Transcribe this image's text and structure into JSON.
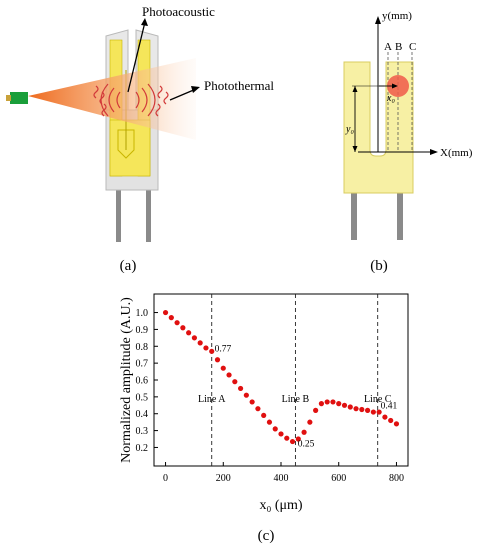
{
  "panel_a": {
    "caption": "(a)",
    "label_photoacoustic": "Photoacoustic",
    "label_photothermal": "Photothermal",
    "colors": {
      "laser": "#1a9e3a",
      "beam": "#f07a30",
      "fork_gold": "#f5e65a",
      "waves": "#d23a3a"
    }
  },
  "panel_b": {
    "caption": "(b)",
    "y_axis_label": "y(mm)",
    "x_axis_label": "X(mm)",
    "line_labels": [
      "A",
      "B",
      "C"
    ],
    "x0_label": "x₀",
    "y0_label": "y₀",
    "colors": {
      "fork": "#f7f0a4",
      "spot": "#f05a4a"
    }
  },
  "panel_c": {
    "caption": "(c)"
  },
  "chart_data": {
    "type": "scatter",
    "xlabel": "x₀ (μm)",
    "ylabel": "Normalized amplitude (A.U.)",
    "xlim": [
      -40,
      840
    ],
    "ylim": [
      0.09,
      1.11
    ],
    "x_ticks": [
      0,
      200,
      400,
      600,
      800
    ],
    "y_ticks": [
      0.2,
      0.3,
      0.4,
      0.5,
      0.6,
      0.7,
      0.8,
      0.9,
      1.0
    ],
    "x_tick_labels": [
      "0",
      "200",
      "400",
      "600",
      "800"
    ],
    "y_tick_labels": [
      "0.2",
      "0.3",
      "0.4",
      "0.5",
      "0.6",
      "0.7",
      "0.8",
      "0.9",
      "1.0"
    ],
    "marker_color": "#e01010",
    "grid": false,
    "vlines": [
      {
        "x": 160,
        "label": "Line A",
        "label_y": 0.47
      },
      {
        "x": 450,
        "label": "Line B",
        "label_y": 0.47
      },
      {
        "x": 735,
        "label": "Line C",
        "label_y": 0.47
      }
    ],
    "annotations": [
      {
        "text": "0.77",
        "x": 170,
        "y": 0.77
      },
      {
        "text": "0.25",
        "x": 458,
        "y": 0.205
      },
      {
        "text": "0.41",
        "x": 745,
        "y": 0.43
      }
    ],
    "series": [
      {
        "x": [
          0,
          20,
          40,
          60,
          80,
          100,
          120,
          140,
          160,
          180,
          200,
          220,
          240,
          260,
          280,
          300,
          320,
          340,
          360,
          380,
          400,
          420,
          440,
          460,
          480,
          500,
          520,
          540,
          560,
          580,
          600,
          620,
          640,
          660,
          680,
          700,
          720,
          740,
          760,
          780,
          800
        ],
        "y": [
          1.0,
          0.97,
          0.94,
          0.91,
          0.88,
          0.85,
          0.82,
          0.79,
          0.77,
          0.72,
          0.67,
          0.63,
          0.59,
          0.55,
          0.51,
          0.47,
          0.43,
          0.39,
          0.35,
          0.31,
          0.28,
          0.255,
          0.235,
          0.25,
          0.29,
          0.35,
          0.42,
          0.46,
          0.47,
          0.47,
          0.46,
          0.45,
          0.44,
          0.43,
          0.425,
          0.42,
          0.41,
          0.41,
          0.38,
          0.36,
          0.34
        ]
      }
    ]
  }
}
